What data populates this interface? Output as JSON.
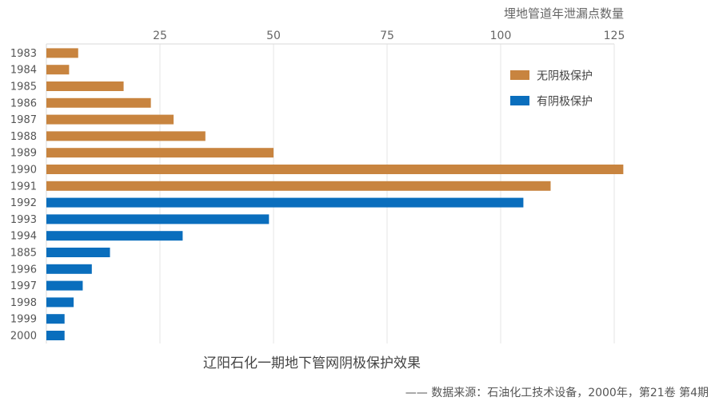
{
  "chart_data": {
    "type": "bar",
    "orientation": "horizontal",
    "title": "辽阳石化一期地下管网阴极保护效果",
    "unit_label": "埋地管道年泄漏点数量",
    "source": "—— 数据来源：石油化工技术设备，2000年，第21卷 第4期",
    "categories": [
      "1983",
      "1984",
      "1985",
      "1986",
      "1987",
      "1988",
      "1989",
      "1990",
      "1991",
      "1992",
      "1993",
      "1994",
      "1885",
      "1996",
      "1997",
      "1998",
      "1999",
      "2000"
    ],
    "xlim": [
      0,
      125
    ],
    "xticks": [
      25,
      50,
      75,
      100,
      125
    ],
    "x_axis_position": "top",
    "grid": true,
    "legend_position": "top-right",
    "series": [
      {
        "name": "无阴极保护",
        "color": "#C8843F",
        "values": [
          7,
          5,
          17,
          23,
          28,
          35,
          50,
          127,
          111,
          null,
          null,
          null,
          null,
          null,
          null,
          null,
          null,
          null
        ]
      },
      {
        "name": "有阴极保护",
        "color": "#0A6EBD",
        "values": [
          null,
          null,
          null,
          null,
          null,
          null,
          null,
          null,
          null,
          105,
          49,
          30,
          14,
          10,
          8,
          6,
          4,
          4
        ]
      }
    ]
  }
}
